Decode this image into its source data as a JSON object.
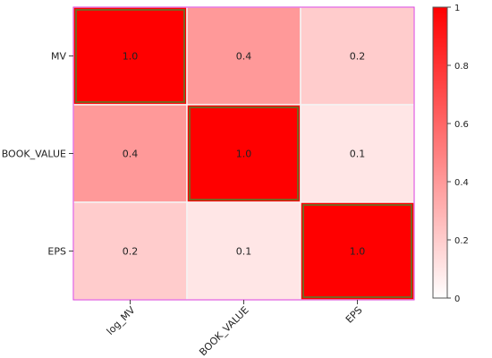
{
  "chart_data": {
    "type": "heatmap",
    "rows": [
      "MV",
      "BOOK_VALUE",
      "EPS"
    ],
    "columns": [
      "log_MV",
      "BOOK_VALUE",
      "EPS"
    ],
    "values": [
      [
        1.0,
        0.4,
        0.2
      ],
      [
        0.4,
        1.0,
        0.1
      ],
      [
        0.2,
        0.1,
        1.0
      ]
    ],
    "cell_labels": [
      [
        "1.0",
        "0.4",
        "0.2"
      ],
      [
        "0.4",
        "1.0",
        "0.1"
      ],
      [
        "0.2",
        "0.1",
        "1.0"
      ]
    ],
    "colorbar": {
      "range": [
        0,
        1
      ],
      "ticks": [
        "0",
        "0.2",
        "0.4",
        "0.6",
        "0.8",
        "1"
      ],
      "low_color": "#ffffff",
      "high_color": "#ff0000"
    },
    "frame_color": "#e040e0",
    "highlight_color": "#5a7a2a",
    "grid": false
  }
}
